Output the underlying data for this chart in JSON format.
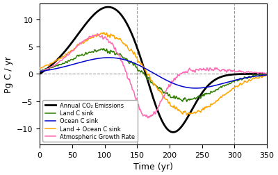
{
  "title": "",
  "xlabel": "Time (yr)",
  "ylabel": "Pg C / yr",
  "xlim": [
    0,
    350
  ],
  "ylim": [
    -13,
    13
  ],
  "yticks": [
    -10,
    -5,
    0,
    5,
    10
  ],
  "xticks": [
    0,
    50,
    100,
    150,
    200,
    250,
    300,
    350
  ],
  "vlines": [
    150,
    300
  ],
  "hline": 0,
  "legend_labels": [
    "Annual CO₂ Emissions",
    "Land C sink",
    "Ocean C sink",
    "Land + Ocean C sink",
    "Atmospheric Growth Rate"
  ],
  "colors": {
    "emissions": "#000000",
    "land": "#2e7d00",
    "ocean": "#0000cc",
    "land_ocean": "#ffa500",
    "atm": "#ff69b4"
  },
  "figsize": [
    4.0,
    2.53
  ],
  "dpi": 100
}
